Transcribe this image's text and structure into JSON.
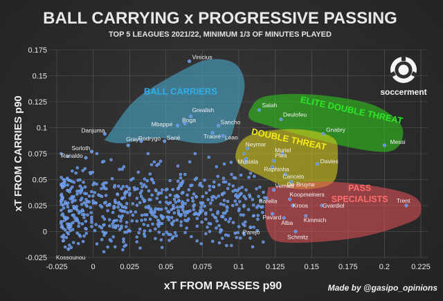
{
  "chart_data": {
    "type": "scatter",
    "title": "BALL CARRYING x PROGRESSIVE PASSING",
    "subtitle": "TOP 5 LEAGUES 2021/22, MINIMUM 1/3 OF MINUTES PLAYED",
    "xlabel": "xT FROM PASSES p90",
    "ylabel": "xT FROM CARRIES p90",
    "credit": "Made by @gasipo_opinions",
    "brand": "soccerment",
    "xlim": [
      -0.025,
      0.225
    ],
    "ylim": [
      -0.025,
      0.175
    ],
    "x_ticks": [
      "-0.025",
      "0",
      "0.025",
      "0.05",
      "0.075",
      "0.1",
      "0.125",
      "0.15",
      "0.175",
      "0.2",
      "0.225"
    ],
    "y_ticks": [
      "-0.025",
      "0",
      "0.025",
      "0.05",
      "0.075",
      "0.1",
      "0.125",
      "0.15",
      "0.175"
    ],
    "grid": true,
    "point_color": "#5b8fe6",
    "labeled_points": [
      {
        "name": "Vinicius",
        "x": 0.066,
        "y": 0.164
      },
      {
        "name": "Grealish",
        "x": 0.067,
        "y": 0.111
      },
      {
        "name": "Boga",
        "x": 0.063,
        "y": 0.104
      },
      {
        "name": "Mbappé",
        "x": 0.058,
        "y": 0.102
      },
      {
        "name": "Sancho",
        "x": 0.086,
        "y": 0.102
      },
      {
        "name": "Traoré",
        "x": 0.082,
        "y": 0.095
      },
      {
        "name": "Leao",
        "x": 0.089,
        "y": 0.092
      },
      {
        "name": "Danjuma",
        "x": 0.008,
        "y": 0.094
      },
      {
        "name": "Gray",
        "x": 0.024,
        "y": 0.083
      },
      {
        "name": "Rodrygo",
        "x": 0.033,
        "y": 0.087
      },
      {
        "name": "Sané",
        "x": 0.049,
        "y": 0.087
      },
      {
        "name": "Sorloth",
        "x": -0.001,
        "y": 0.077
      },
      {
        "name": "Ronaldo",
        "x": -0.005,
        "y": 0.071
      },
      {
        "name": "Salah",
        "x": 0.114,
        "y": 0.117
      },
      {
        "name": "Deulofeu",
        "x": 0.129,
        "y": 0.108
      },
      {
        "name": "Gnabry",
        "x": 0.158,
        "y": 0.094
      },
      {
        "name": "Messi",
        "x": 0.2,
        "y": 0.083
      },
      {
        "name": "Neymar",
        "x": 0.106,
        "y": 0.08
      },
      {
        "name": "Muriel",
        "x": 0.13,
        "y": 0.075
      },
      {
        "name": "Musiala",
        "x": 0.105,
        "y": 0.07
      },
      {
        "name": "Plea",
        "x": 0.124,
        "y": 0.068
      },
      {
        "name": "Davies",
        "x": 0.154,
        "y": 0.065
      },
      {
        "name": "Raphinha",
        "x": 0.123,
        "y": 0.062
      },
      {
        "name": "Cancelo",
        "x": 0.132,
        "y": 0.055
      },
      {
        "name": "De Bruyne",
        "x": 0.136,
        "y": 0.048
      },
      {
        "name": "Verratti",
        "x": 0.124,
        "y": 0.04
      },
      {
        "name": "Barella",
        "x": 0.119,
        "y": 0.032
      },
      {
        "name": "Koopmeiners",
        "x": 0.135,
        "y": 0.031
      },
      {
        "name": "Kroos",
        "x": 0.137,
        "y": 0.025
      },
      {
        "name": "Gvardiol",
        "x": 0.157,
        "y": 0.025
      },
      {
        "name": "Trent",
        "x": 0.215,
        "y": 0.025
      },
      {
        "name": "Pavard",
        "x": 0.123,
        "y": 0.017
      },
      {
        "name": "Alba",
        "x": 0.131,
        "y": 0.013
      },
      {
        "name": "Kimmich",
        "x": 0.146,
        "y": 0.015
      },
      {
        "name": "Parejo",
        "x": 0.108,
        "y": 0.004
      },
      {
        "name": "Schmitz",
        "x": 0.139,
        "y": 0
      },
      {
        "name": "Kossounou",
        "x": -0.017,
        "y": -0.017
      }
    ],
    "unlabeled_cloud": {
      "description_points": [
        {
          "x": 0.005,
          "y": 0.025
        },
        {
          "x": 0.01,
          "y": 0.02
        },
        {
          "x": 0.015,
          "y": 0.03
        },
        {
          "x": 0.02,
          "y": 0.015
        },
        {
          "x": 0.025,
          "y": 0.035
        },
        {
          "x": 0.03,
          "y": 0.01
        },
        {
          "x": 0.035,
          "y": 0.045
        },
        {
          "x": 0.04,
          "y": 0.02
        },
        {
          "x": 0.045,
          "y": 0.005
        },
        {
          "x": 0.05,
          "y": 0.04
        },
        {
          "x": 0.055,
          "y": 0.025
        },
        {
          "x": 0.06,
          "y": 0.015
        },
        {
          "x": 0.065,
          "y": 0.03
        },
        {
          "x": 0.07,
          "y": 0.05
        },
        {
          "x": 0.075,
          "y": 0.02
        },
        {
          "x": 0.08,
          "y": 0.04
        },
        {
          "x": 0.085,
          "y": 0.01
        },
        {
          "x": 0.09,
          "y": 0.03
        },
        {
          "x": 0.095,
          "y": 0.055
        },
        {
          "x": 0.1,
          "y": 0.02
        },
        {
          "x": 0.105,
          "y": 0.04
        },
        {
          "x": 0.11,
          "y": 0.015
        },
        {
          "x": 0.115,
          "y": 0.03
        },
        {
          "x": -0.01,
          "y": 0.005
        },
        {
          "x": -0.015,
          "y": 0.02
        },
        {
          "x": 0.0,
          "y": 0.045
        },
        {
          "x": 0.02,
          "y": 0.06
        },
        {
          "x": 0.045,
          "y": 0.065
        },
        {
          "x": 0.07,
          "y": 0.075
        },
        {
          "x": 0.03,
          "y": -0.01
        },
        {
          "x": 0.055,
          "y": -0.005
        },
        {
          "x": 0.08,
          "y": 0.0
        },
        {
          "x": 0.01,
          "y": -0.015
        },
        {
          "x": 0.09,
          "y": 0.065
        },
        {
          "x": 0.06,
          "y": 0.055
        }
      ]
    },
    "regions": [
      {
        "label": "BALL CARRIERS",
        "color": "#4ab0d9",
        "text_color": "#2fb0ea",
        "label_x": 0.06,
        "label_y": 0.132
      },
      {
        "label": "ELITE DOUBLE THREAT",
        "color": "#2fd11a",
        "text_color": "#2ee625",
        "label_x": 0.177,
        "label_y": 0.114
      },
      {
        "label": "DOUBLE THREAT",
        "color": "#e2d61a",
        "text_color": "#f3ea18",
        "label_x": 0.134,
        "label_y": 0.086
      },
      {
        "label": "PASS SPECIALISTS",
        "color": "#e8525a",
        "text_color": "#ff6c6c",
        "label_x": 0.183,
        "label_y": 0.035
      }
    ]
  }
}
